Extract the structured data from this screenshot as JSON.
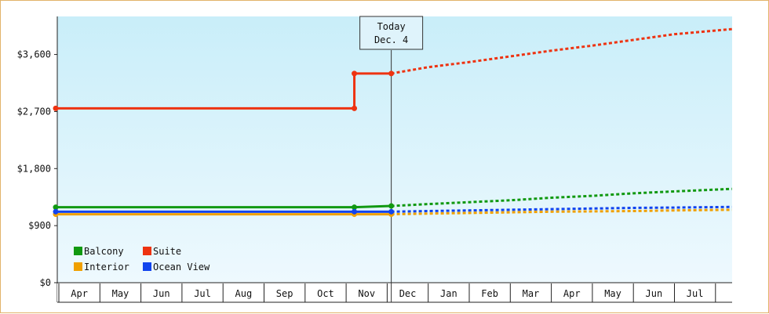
{
  "chart_data": {
    "type": "line",
    "y_ticks": [
      "$0",
      "$900",
      "$1,800",
      "$2,700",
      "$3,600"
    ],
    "ylim": [
      0,
      4200
    ],
    "x_ticks": [
      "Apr",
      "May",
      "Jun",
      "Jul",
      "Aug",
      "Sep",
      "Oct",
      "Nov",
      "Dec",
      "Jan",
      "Feb",
      "Mar",
      "Apr",
      "May",
      "Jun",
      "Jul"
    ],
    "today": {
      "line1": "Today",
      "line2": "Dec. 4",
      "x": 8.1
    },
    "legend_position": "bottom-left",
    "series": [
      {
        "name": "Balcony",
        "color": "#119911",
        "actual": [
          [
            0,
            1190
          ],
          [
            7.2,
            1190
          ],
          [
            8.1,
            1210
          ]
        ],
        "forecast": [
          [
            8.1,
            1210
          ],
          [
            9,
            1240
          ],
          [
            10,
            1270
          ],
          [
            11,
            1300
          ],
          [
            12,
            1340
          ],
          [
            13,
            1370
          ],
          [
            14,
            1410
          ],
          [
            15,
            1440
          ],
          [
            16.4,
            1480
          ]
        ]
      },
      {
        "name": "Suite",
        "color": "#ee3311",
        "actual": [
          [
            0,
            2750
          ],
          [
            7.2,
            2750
          ],
          [
            7.2,
            3300
          ],
          [
            8.1,
            3300
          ]
        ],
        "forecast": [
          [
            8.1,
            3300
          ],
          [
            9,
            3400
          ],
          [
            10,
            3480
          ],
          [
            11,
            3570
          ],
          [
            12,
            3660
          ],
          [
            13,
            3740
          ],
          [
            14,
            3830
          ],
          [
            15,
            3920
          ],
          [
            16.4,
            4000
          ]
        ]
      },
      {
        "name": "Interior",
        "color": "#f0a000",
        "actual": [
          [
            0,
            1080
          ],
          [
            7.2,
            1080
          ],
          [
            8.1,
            1080
          ]
        ],
        "forecast": [
          [
            8.1,
            1080
          ],
          [
            9,
            1090
          ],
          [
            10,
            1100
          ],
          [
            11,
            1110
          ],
          [
            12,
            1120
          ],
          [
            13,
            1125
          ],
          [
            14,
            1130
          ],
          [
            15,
            1140
          ],
          [
            16.4,
            1150
          ]
        ]
      },
      {
        "name": "Ocean View",
        "color": "#1144ee",
        "actual": [
          [
            0,
            1120
          ],
          [
            7.2,
            1120
          ],
          [
            8.1,
            1120
          ]
        ],
        "forecast": [
          [
            8.1,
            1120
          ],
          [
            9,
            1130
          ],
          [
            10,
            1140
          ],
          [
            11,
            1150
          ],
          [
            12,
            1160
          ],
          [
            13,
            1170
          ],
          [
            14,
            1180
          ],
          [
            15,
            1185
          ],
          [
            16.4,
            1195
          ]
        ]
      }
    ]
  }
}
